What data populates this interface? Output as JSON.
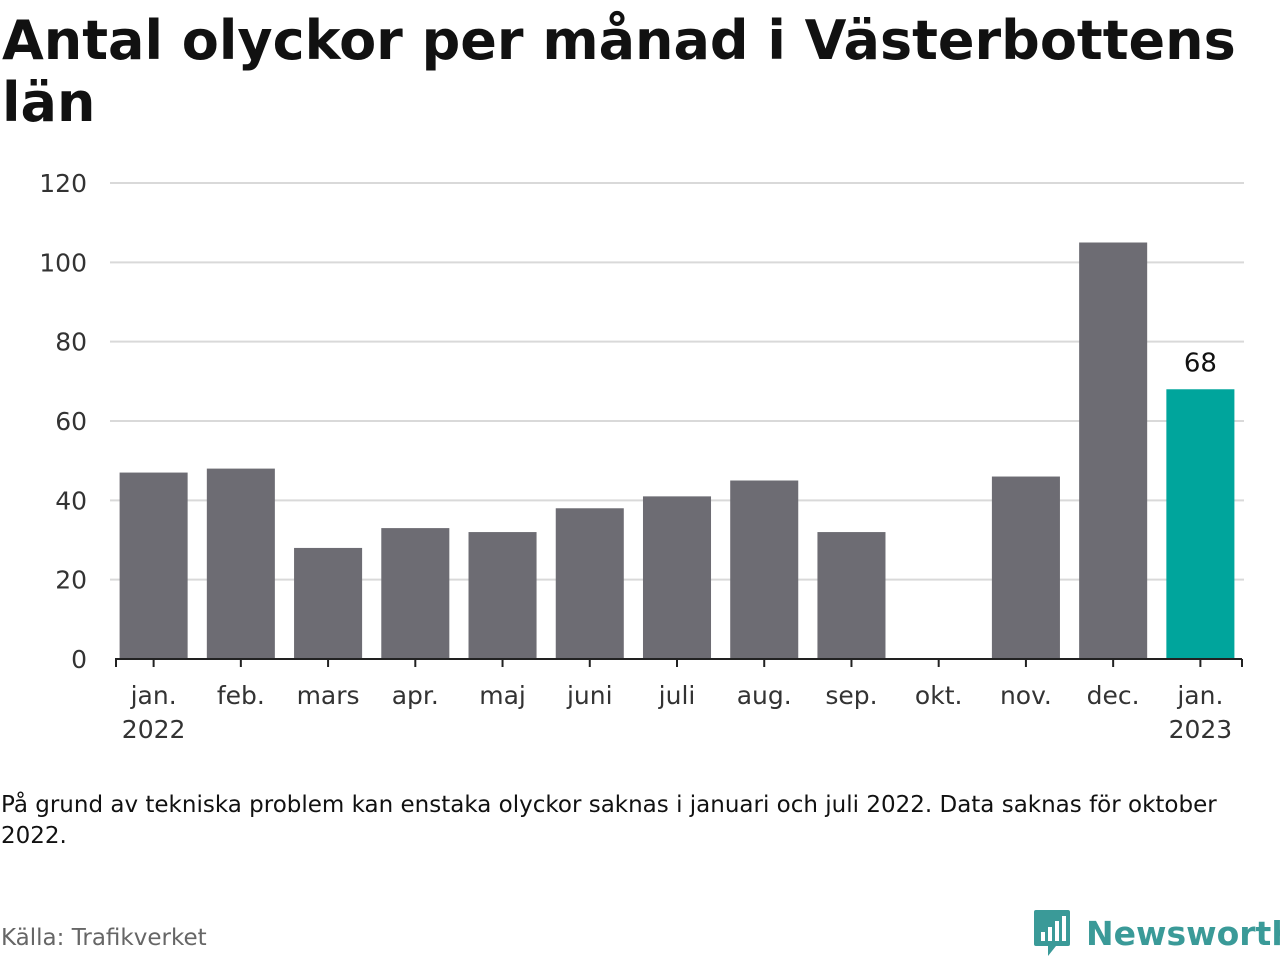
{
  "title": "Antal olyckor per månad i Västerbottens län",
  "note": "På grund av tekniska problem kan enstaka olyckor saknas i januari och juli 2022. Data saknas för oktober 2022.",
  "source": "Källa: Trafikverket",
  "brand": {
    "name": "Newsworthy",
    "icon": "newsworthy-logo-icon"
  },
  "colors": {
    "bar": "#6d6c73",
    "highlight": "#00a59c",
    "grid": "#d9d9d9",
    "axis": "#222222"
  },
  "chart_data": {
    "type": "bar",
    "title": "Antal olyckor per månad i Västerbottens län",
    "xlabel": "",
    "ylabel": "",
    "categories": [
      "jan. 2022",
      "feb.",
      "mars",
      "apr.",
      "maj",
      "juni",
      "juli",
      "aug.",
      "sep.",
      "okt.",
      "nov.",
      "dec.",
      "jan. 2023"
    ],
    "tick_labels": [
      [
        "jan.",
        "2022"
      ],
      [
        "feb."
      ],
      [
        "mars"
      ],
      [
        "apr."
      ],
      [
        "maj"
      ],
      [
        "juni"
      ],
      [
        "juli"
      ],
      [
        "aug."
      ],
      [
        "sep."
      ],
      [
        "okt."
      ],
      [
        "nov."
      ],
      [
        "dec."
      ],
      [
        "jan.",
        "2023"
      ]
    ],
    "values": [
      47,
      48,
      28,
      33,
      32,
      38,
      41,
      45,
      32,
      null,
      46,
      105,
      68
    ],
    "highlight_index": 12,
    "data_labels": [
      {
        "index": 12,
        "text": "68"
      }
    ],
    "ylim": [
      0,
      120
    ],
    "yticks": [
      0,
      20,
      40,
      60,
      80,
      100,
      120
    ],
    "grid": true,
    "legend": "none"
  }
}
